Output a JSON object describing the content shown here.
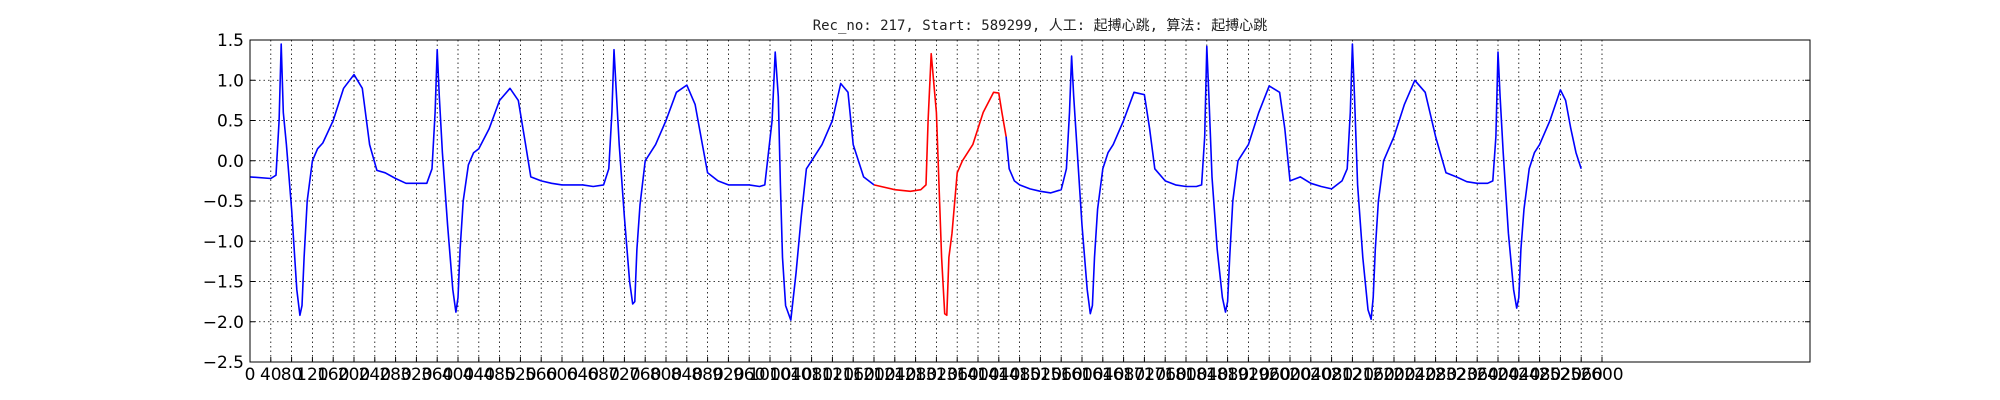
{
  "chart_data": {
    "type": "line",
    "title": "Rec_no: 217, Start: 589299, 人工: 起搏心跳, 算法: 起搏心跳",
    "xlabel": "",
    "ylabel": "",
    "xlim": [
      0,
      3000
    ],
    "ylim": [
      -2.5,
      1.5
    ],
    "grid": true,
    "x_ticks": [
      0,
      40,
      80,
      120,
      160,
      200,
      240,
      280,
      320,
      360,
      400,
      440,
      480,
      520,
      560,
      600,
      640,
      680,
      720,
      760,
      800,
      840,
      880,
      920,
      960,
      1000,
      1040,
      1080,
      1120,
      1160,
      1200,
      1240,
      1280,
      1320,
      1360,
      1400,
      1440,
      1480,
      1520,
      1560,
      1600,
      1640,
      1680,
      1720,
      1760,
      1800,
      1840,
      1880,
      1920,
      1960,
      2000,
      2040,
      2080,
      2120,
      2160,
      2200,
      2240,
      2280,
      2320,
      2360,
      2400,
      2440,
      2480,
      2520,
      2560,
      2600
    ],
    "x_tick_labels": [
      "0",
      "40",
      "80",
      "120",
      "160",
      "200",
      "240",
      "280",
      "320",
      "360",
      "400",
      "440",
      "480",
      "520",
      "560",
      "600",
      "640",
      "680",
      "720",
      "760",
      "800",
      "840",
      "880",
      "920",
      "960",
      "1000",
      "1040",
      "1080",
      "1120",
      "1160",
      "1200",
      "1240",
      "1280",
      "1320",
      "1360",
      "1400",
      "1440",
      "1480",
      "1520",
      "1560",
      "1600",
      "1640",
      "1680",
      "1720",
      "1760",
      "1800",
      "1840",
      "1880",
      "1920",
      "1960",
      "2000",
      "2040",
      "2080",
      "2120",
      "2160",
      "2200",
      "2240",
      "2280",
      "2320",
      "2360",
      "2400",
      "2440",
      "2480",
      "2520",
      "2560",
      "2600"
    ],
    "y_ticks": [
      -2.5,
      -2.0,
      -1.5,
      -1.0,
      -0.5,
      0.0,
      0.5,
      1.0,
      1.5
    ],
    "y_tick_labels": [
      "−2.5",
      "−2.0",
      "−1.5",
      "−1.0",
      "−0.5",
      "0.0",
      "0.5",
      "1.0",
      "1.5"
    ],
    "series": [
      {
        "color": "#0000ff",
        "x": [
          0,
          40,
          50,
          56,
          60,
          64,
          70,
          80,
          90,
          96,
          100,
          104,
          110,
          120,
          130,
          140,
          160,
          180,
          200,
          216,
          230,
          244,
          260,
          280,
          300,
          320,
          340,
          350,
          356,
          360,
          364,
          370,
          380,
          390,
          396,
          400,
          404,
          410,
          420,
          430,
          440,
          460,
          480,
          500,
          516,
          530,
          540,
          560,
          580,
          600,
          620,
          640,
          660,
          680,
          690,
          696,
          700,
          704,
          710,
          720,
          730,
          736,
          740,
          744,
          750,
          760,
          770,
          780,
          800,
          820,
          840,
          856,
          870,
          880,
          900,
          920,
          940,
          960,
          980,
          990,
          1004,
          1010,
          1016,
          1020,
          1024,
          1030,
          1040,
          1050,
          1060,
          1070,
          1080,
          1100,
          1120,
          1136,
          1150,
          1160,
          1180,
          1200
        ],
        "y": [
          -0.2,
          -0.22,
          -0.18,
          0.5,
          1.45,
          0.6,
          0.2,
          -0.6,
          -1.6,
          -1.92,
          -1.8,
          -1.2,
          -0.5,
          0.0,
          0.15,
          0.22,
          0.5,
          0.9,
          1.07,
          0.9,
          0.2,
          -0.12,
          -0.15,
          -0.22,
          -0.28,
          -0.28,
          -0.28,
          -0.1,
          0.6,
          1.38,
          0.8,
          0.1,
          -0.8,
          -1.6,
          -1.88,
          -1.7,
          -1.1,
          -0.5,
          -0.05,
          0.1,
          0.15,
          0.4,
          0.75,
          0.9,
          0.75,
          0.2,
          -0.2,
          -0.25,
          -0.28,
          -0.3,
          -0.3,
          -0.3,
          -0.32,
          -0.3,
          -0.1,
          0.6,
          1.38,
          0.9,
          0.2,
          -0.7,
          -1.5,
          -1.78,
          -1.75,
          -1.1,
          -0.55,
          0.0,
          0.1,
          0.2,
          0.5,
          0.85,
          0.94,
          0.7,
          0.2,
          -0.15,
          -0.25,
          -0.3,
          -0.3,
          -0.3,
          -0.32,
          -0.3,
          0.5,
          1.35,
          0.8,
          -0.3,
          -1.2,
          -1.8,
          -1.98,
          -1.4,
          -0.7,
          -0.1,
          0.0,
          0.2,
          0.5,
          0.96,
          0.85,
          0.2,
          -0.2,
          -0.3
        ]
      },
      {
        "color": "#ff0000",
        "x": [
          1200,
          1240,
          1270,
          1290,
          1300,
          1304,
          1310,
          1320,
          1330,
          1336,
          1340,
          1344,
          1350,
          1360,
          1370,
          1390,
          1410,
          1430,
          1440,
          1446,
          1450,
          1454
        ],
        "y": [
          -0.3,
          -0.36,
          -0.38,
          -0.36,
          -0.3,
          0.5,
          1.33,
          0.6,
          -1.2,
          -1.9,
          -1.92,
          -1.2,
          -0.9,
          -0.15,
          0.0,
          0.2,
          0.6,
          0.85,
          0.84,
          0.6,
          0.45,
          0.3
        ]
      },
      {
        "color": "#0000ff",
        "x": [
          1454,
          1460,
          1470,
          1480,
          1500,
          1520,
          1540,
          1560,
          1570,
          1576,
          1580,
          1584,
          1590,
          1600,
          1610,
          1616,
          1620,
          1624,
          1630,
          1640,
          1650,
          1660,
          1680,
          1700,
          1720,
          1730,
          1740,
          1760,
          1780,
          1800,
          1820,
          1830,
          1836,
          1840,
          1844,
          1850,
          1860,
          1870,
          1876,
          1880,
          1884,
          1890,
          1900,
          1910,
          1920,
          1940,
          1960,
          1980,
          1990,
          2000,
          2020,
          2040,
          2060,
          2080,
          2100,
          2110,
          2116,
          2120,
          2124,
          2130,
          2140,
          2150,
          2156,
          2160,
          2164,
          2170,
          2180,
          2190,
          2200,
          2220,
          2240,
          2260,
          2280,
          2300,
          2320,
          2340,
          2360,
          2380,
          2390,
          2396,
          2400,
          2404,
          2410,
          2420,
          2430,
          2436,
          2440,
          2444,
          2450,
          2460,
          2470,
          2480,
          2500,
          2520,
          2530,
          2540,
          2550,
          2560
        ],
        "y": [
          0.3,
          -0.1,
          -0.25,
          -0.3,
          -0.35,
          -0.38,
          -0.4,
          -0.36,
          -0.1,
          0.6,
          1.3,
          0.8,
          0.2,
          -0.8,
          -1.6,
          -1.9,
          -1.8,
          -1.2,
          -0.6,
          -0.1,
          0.1,
          0.2,
          0.5,
          0.85,
          0.82,
          0.4,
          -0.1,
          -0.25,
          -0.3,
          -0.32,
          -0.32,
          -0.3,
          0.3,
          1.42,
          0.8,
          -0.2,
          -1.1,
          -1.7,
          -1.88,
          -1.75,
          -1.2,
          -0.5,
          0.0,
          0.1,
          0.2,
          0.6,
          0.93,
          0.85,
          0.4,
          -0.25,
          -0.2,
          -0.28,
          -0.32,
          -0.35,
          -0.25,
          -0.1,
          0.6,
          1.45,
          0.8,
          -0.3,
          -1.2,
          -1.85,
          -1.97,
          -1.7,
          -1.1,
          -0.5,
          0.0,
          0.15,
          0.3,
          0.7,
          1.0,
          0.85,
          0.3,
          -0.15,
          -0.2,
          -0.26,
          -0.28,
          -0.28,
          -0.25,
          0.3,
          1.35,
          0.8,
          0.1,
          -0.9,
          -1.6,
          -1.83,
          -1.7,
          -1.1,
          -0.6,
          -0.1,
          0.1,
          0.2,
          0.5,
          0.88,
          0.75,
          0.4,
          0.1,
          -0.1
        ]
      }
    ]
  }
}
